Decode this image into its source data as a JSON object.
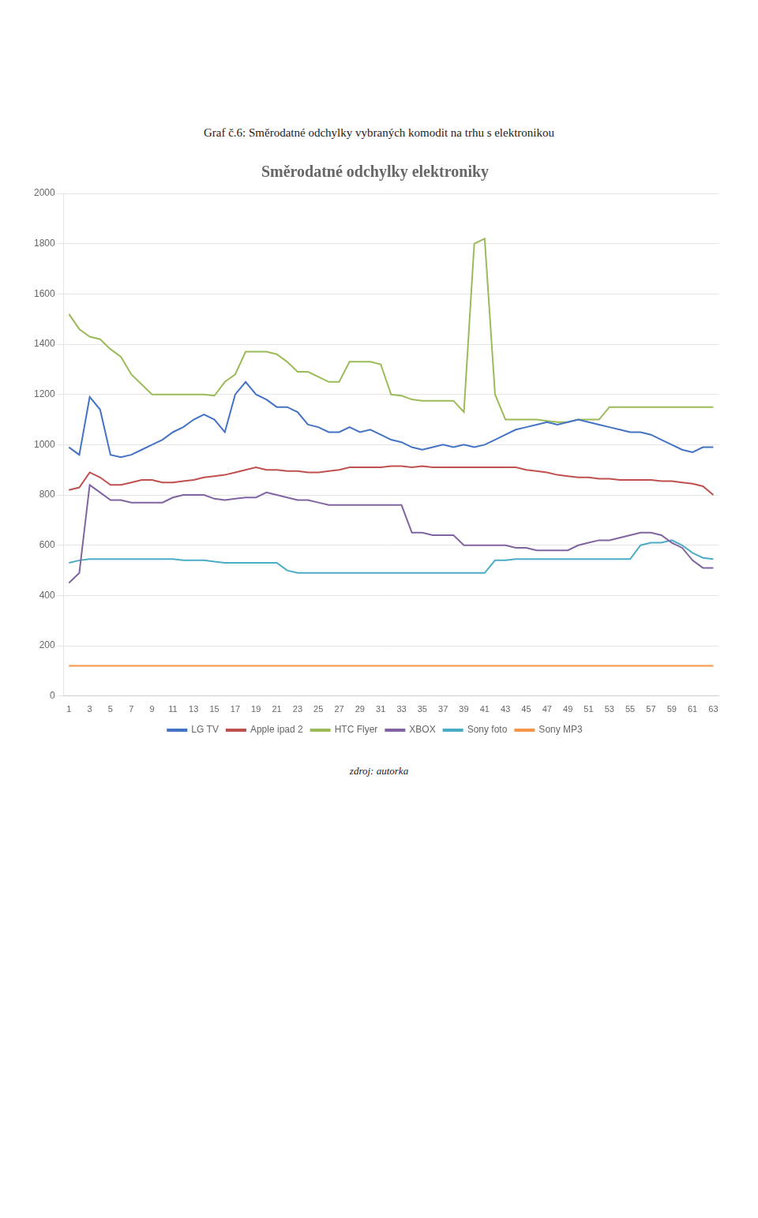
{
  "chart_data": {
    "type": "line",
    "title": "Směrodatné odchylky elektroniky",
    "subtitle": "Graf č.6: Směrodatné odchylky vybraných komodit na trhu s elektronikou",
    "annotations": [
      "zdroj: autorka"
    ],
    "x": [
      1,
      2,
      3,
      4,
      5,
      6,
      7,
      8,
      9,
      10,
      11,
      12,
      13,
      14,
      15,
      16,
      17,
      18,
      19,
      20,
      21,
      22,
      23,
      24,
      25,
      26,
      27,
      28,
      29,
      30,
      31,
      32,
      33,
      34,
      35,
      36,
      37,
      38,
      39,
      40,
      41,
      42,
      43,
      44,
      45,
      46,
      47,
      48,
      49,
      50,
      51,
      52,
      53,
      54,
      55,
      56,
      57,
      58,
      59,
      60,
      61,
      62,
      63
    ],
    "xlim": [
      0.5,
      63.5
    ],
    "xticks": [
      1,
      3,
      5,
      7,
      9,
      11,
      13,
      15,
      17,
      19,
      21,
      23,
      25,
      27,
      29,
      31,
      33,
      35,
      37,
      39,
      41,
      43,
      45,
      47,
      49,
      51,
      53,
      55,
      57,
      59,
      61,
      63
    ],
    "ylim": [
      0,
      2000
    ],
    "yticks": [
      0,
      200,
      400,
      600,
      800,
      1000,
      1200,
      1400,
      1600,
      1800,
      2000
    ],
    "grid": "y",
    "legend": "bottom",
    "series": [
      {
        "name": "LG TV",
        "color": "#4472C4",
        "values": [
          990,
          960,
          1190,
          1140,
          960,
          950,
          960,
          980,
          1000,
          1020,
          1050,
          1070,
          1100,
          1120,
          1100,
          1050,
          1200,
          1250,
          1200,
          1180,
          1150,
          1150,
          1130,
          1080,
          1070,
          1050,
          1050,
          1070,
          1050,
          1060,
          1040,
          1020,
          1010,
          990,
          980,
          990,
          1000,
          990,
          1000,
          990,
          1000,
          1020,
          1040,
          1060,
          1070,
          1080,
          1090,
          1080,
          1090,
          1100,
          1090,
          1080,
          1070,
          1060,
          1050,
          1050,
          1040,
          1020,
          1000,
          980,
          970,
          990,
          990
        ]
      },
      {
        "name": "Apple ipad 2",
        "color": "#C0504D",
        "values": [
          820,
          830,
          890,
          870,
          840,
          840,
          850,
          860,
          860,
          850,
          850,
          855,
          860,
          870,
          875,
          880,
          890,
          900,
          910,
          900,
          900,
          895,
          895,
          890,
          890,
          895,
          900,
          910,
          910,
          910,
          910,
          915,
          915,
          910,
          915,
          910,
          910,
          910,
          910,
          910,
          910,
          910,
          910,
          910,
          900,
          895,
          890,
          880,
          875,
          870,
          870,
          865,
          865,
          860,
          860,
          860,
          860,
          855,
          855,
          850,
          845,
          835,
          800
        ]
      },
      {
        "name": "HTC Flyer",
        "color": "#9BBB59",
        "values": [
          1520,
          1460,
          1430,
          1420,
          1380,
          1350,
          1280,
          1240,
          1200,
          1200,
          1200,
          1200,
          1200,
          1200,
          1195,
          1250,
          1280,
          1370,
          1370,
          1370,
          1360,
          1330,
          1290,
          1290,
          1270,
          1250,
          1250,
          1330,
          1330,
          1330,
          1320,
          1200,
          1195,
          1180,
          1175,
          1175,
          1175,
          1175,
          1130,
          1800,
          1820,
          1200,
          1100,
          1100,
          1100,
          1100,
          1095,
          1090,
          1090,
          1100,
          1100,
          1100,
          1150,
          1150,
          1150,
          1150,
          1150,
          1150,
          1150,
          1150,
          1150,
          1150,
          1150
        ]
      },
      {
        "name": "XBOX",
        "color": "#8064A2",
        "values": [
          450,
          490,
          840,
          810,
          780,
          780,
          770,
          770,
          770,
          770,
          790,
          800,
          800,
          800,
          785,
          780,
          785,
          790,
          790,
          810,
          800,
          790,
          780,
          780,
          770,
          760,
          760,
          760,
          760,
          760,
          760,
          760,
          760,
          650,
          650,
          640,
          640,
          640,
          600,
          600,
          600,
          600,
          600,
          590,
          590,
          580,
          580,
          580,
          580,
          600,
          610,
          620,
          620,
          630,
          640,
          650,
          650,
          640,
          610,
          590,
          540,
          510,
          510
        ]
      },
      {
        "name": "Sony foto",
        "color": "#4BACC6",
        "values": [
          530,
          540,
          545,
          545,
          545,
          545,
          545,
          545,
          545,
          545,
          545,
          540,
          540,
          540,
          535,
          530,
          530,
          530,
          530,
          530,
          530,
          500,
          490,
          490,
          490,
          490,
          490,
          490,
          490,
          490,
          490,
          490,
          490,
          490,
          490,
          490,
          490,
          490,
          490,
          490,
          490,
          540,
          540,
          545,
          545,
          545,
          545,
          545,
          545,
          545,
          545,
          545,
          545,
          545,
          545,
          600,
          610,
          610,
          620,
          600,
          570,
          550,
          545
        ]
      },
      {
        "name": "Sony MP3",
        "color": "#F79646",
        "values": [
          120,
          120,
          120,
          120,
          120,
          120,
          120,
          120,
          120,
          120,
          120,
          120,
          120,
          120,
          120,
          120,
          120,
          120,
          120,
          120,
          120,
          120,
          120,
          120,
          120,
          120,
          120,
          120,
          120,
          120,
          120,
          120,
          120,
          120,
          120,
          120,
          120,
          120,
          120,
          120,
          120,
          120,
          120,
          120,
          120,
          120,
          120,
          120,
          120,
          120,
          120,
          120,
          120,
          120,
          120,
          120,
          120,
          120,
          120,
          120,
          120,
          120,
          120
        ]
      }
    ]
  }
}
